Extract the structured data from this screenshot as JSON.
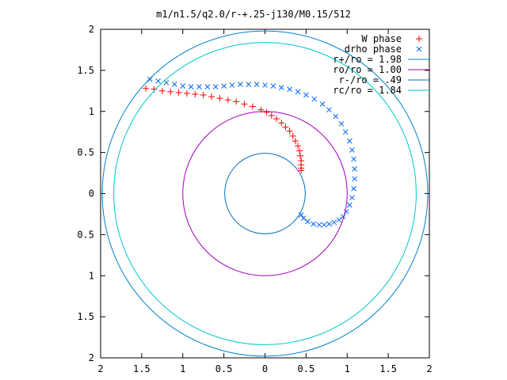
{
  "chart_data": {
    "type": "scatter",
    "title": "m1/n1.5/q2.0/r-+.25-j130/M0.15/512",
    "xlabel": "",
    "ylabel": "",
    "xlim": [
      -2,
      2
    ],
    "ylim": [
      -2,
      2
    ],
    "x_ticks": [
      -2,
      -1.5,
      -1,
      -0.5,
      0,
      0.5,
      1,
      1.5,
      2
    ],
    "y_ticks": [
      -2,
      -1.5,
      -1,
      -0.5,
      0,
      0.5,
      1,
      1.5,
      2
    ],
    "x_tick_labels": [
      "2",
      "1.5",
      "1",
      "0.5",
      "0",
      "0.5",
      "1",
      "1.5",
      "2"
    ],
    "y_tick_labels": [
      "2",
      "1.5",
      "1",
      "0.5",
      "0",
      "0.5",
      "1",
      "1.5",
      "2"
    ],
    "grid": false,
    "legend_position": "top-right",
    "series": [
      {
        "name": "W phase",
        "kind": "points",
        "marker": "+",
        "color": "#ff0000",
        "x": [
          -1.45,
          -1.35,
          -1.25,
          -1.15,
          -1.05,
          -0.95,
          -0.85,
          -0.75,
          -0.65,
          -0.55,
          -0.45,
          -0.35,
          -0.25,
          -0.15,
          -0.05,
          0.02,
          0.08,
          0.14,
          0.2,
          0.25,
          0.3,
          0.34,
          0.37,
          0.4,
          0.42,
          0.43,
          0.44,
          0.44,
          0.44,
          0.44
        ],
        "y": [
          1.28,
          1.27,
          1.25,
          1.24,
          1.23,
          1.22,
          1.21,
          1.2,
          1.18,
          1.16,
          1.14,
          1.12,
          1.09,
          1.06,
          1.02,
          0.99,
          0.95,
          0.91,
          0.86,
          0.81,
          0.76,
          0.7,
          0.64,
          0.58,
          0.52,
          0.46,
          0.4,
          0.35,
          0.31,
          0.28
        ]
      },
      {
        "name": "drho phase",
        "kind": "points",
        "marker": "x",
        "color": "#0066ff",
        "x": [
          -1.4,
          -1.3,
          -1.2,
          -1.1,
          -1.0,
          -0.9,
          -0.8,
          -0.7,
          -0.6,
          -0.5,
          -0.4,
          -0.3,
          -0.2,
          -0.1,
          0.0,
          0.1,
          0.2,
          0.3,
          0.4,
          0.5,
          0.6,
          0.7,
          0.78,
          0.86,
          0.93,
          0.98,
          1.03,
          1.06,
          1.08,
          1.09,
          1.09,
          1.08,
          1.06,
          1.03,
          0.99,
          0.95,
          0.9,
          0.84,
          0.78,
          0.72,
          0.66,
          0.59,
          0.52,
          0.47,
          0.44
        ],
        "y": [
          1.39,
          1.37,
          1.35,
          1.33,
          1.31,
          1.3,
          1.3,
          1.3,
          1.3,
          1.31,
          1.32,
          1.33,
          1.33,
          1.33,
          1.32,
          1.31,
          1.29,
          1.27,
          1.24,
          1.2,
          1.15,
          1.09,
          1.02,
          0.94,
          0.85,
          0.75,
          0.64,
          0.53,
          0.42,
          0.3,
          0.18,
          0.06,
          -0.05,
          -0.14,
          -0.22,
          -0.28,
          -0.32,
          -0.35,
          -0.37,
          -0.38,
          -0.38,
          -0.37,
          -0.34,
          -0.3,
          -0.26
        ]
      },
      {
        "name": "r+/ro = 1.98",
        "kind": "circle",
        "r": 1.98,
        "color": "#0080d0"
      },
      {
        "name": "ro/ro = 1.00",
        "kind": "circle",
        "r": 1.0,
        "color": "#a000c0"
      },
      {
        "name": "r-/ro = .49",
        "kind": "circle",
        "r": 0.49,
        "color": "#0070c0"
      },
      {
        "name": "rc/ro = 1.84",
        "kind": "circle",
        "r": 1.84,
        "color": "#00c8c8"
      }
    ]
  }
}
